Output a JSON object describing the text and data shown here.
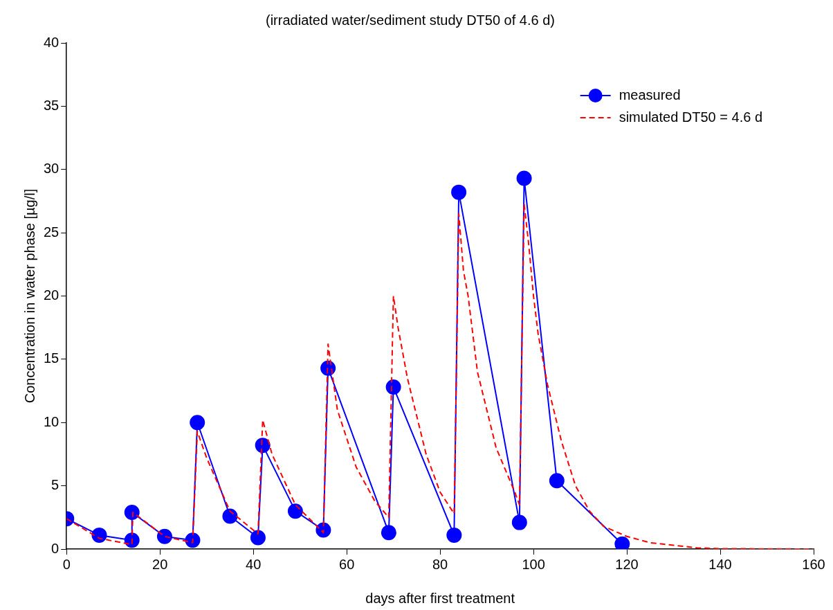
{
  "chart_data": {
    "type": "line",
    "title": "(irradiated water/sediment study DT50 of 4.6 d)",
    "xlabel": "days after first treatment",
    "ylabel": "Concentration in water phase [µg/l]",
    "xlim": [
      0,
      160
    ],
    "xticks": [
      0,
      20,
      40,
      60,
      80,
      100,
      120,
      140,
      160
    ],
    "ylim": [
      0,
      40
    ],
    "yticks": [
      0,
      5,
      10,
      15,
      20,
      25,
      30,
      35,
      40
    ],
    "grid": false,
    "legend": "top right",
    "series": [
      {
        "name": "measured",
        "color": "#0000ff",
        "marker": "circle",
        "line_style": "solid",
        "x": [
          0,
          7,
          14,
          14,
          21,
          27,
          28,
          35,
          41,
          42,
          49,
          55,
          56,
          69,
          70,
          83,
          84,
          97,
          98,
          105,
          119
        ],
        "values": [
          2.4,
          1.1,
          0.7,
          2.9,
          1.0,
          0.7,
          10.0,
          2.6,
          0.9,
          8.2,
          3.0,
          1.5,
          14.3,
          1.3,
          12.8,
          1.1,
          28.2,
          2.1,
          29.3,
          5.4,
          0.4
        ]
      },
      {
        "name": "simulated DT50 = 4.6 d",
        "color": "#ff0000",
        "marker": "none",
        "line_style": "dashed",
        "x": [
          0,
          7,
          14,
          14.2,
          21,
          27,
          28,
          30,
          35,
          41,
          42,
          44,
          49,
          55,
          56,
          58,
          62,
          66,
          69,
          70,
          71,
          73,
          77,
          80,
          83,
          83.5,
          84,
          85,
          86,
          88,
          92,
          96,
          97,
          98,
          99,
          100,
          101,
          103,
          106,
          109,
          112,
          115,
          120,
          125,
          130,
          135,
          140,
          160
        ],
        "values": [
          2.4,
          0.85,
          0.35,
          2.9,
          1.0,
          0.5,
          9.3,
          7.2,
          3.0,
          1.2,
          10.2,
          7.5,
          3.5,
          1.3,
          16.2,
          11,
          6.5,
          3.8,
          2.5,
          20.0,
          17.5,
          13.5,
          7.5,
          4.5,
          2.8,
          14,
          26.5,
          22,
          20,
          14,
          8,
          4.5,
          3.5,
          27.3,
          24,
          20,
          17,
          13,
          8.5,
          5,
          3,
          1.8,
          1.0,
          0.5,
          0.3,
          0.1,
          0.03,
          0
        ]
      }
    ]
  }
}
